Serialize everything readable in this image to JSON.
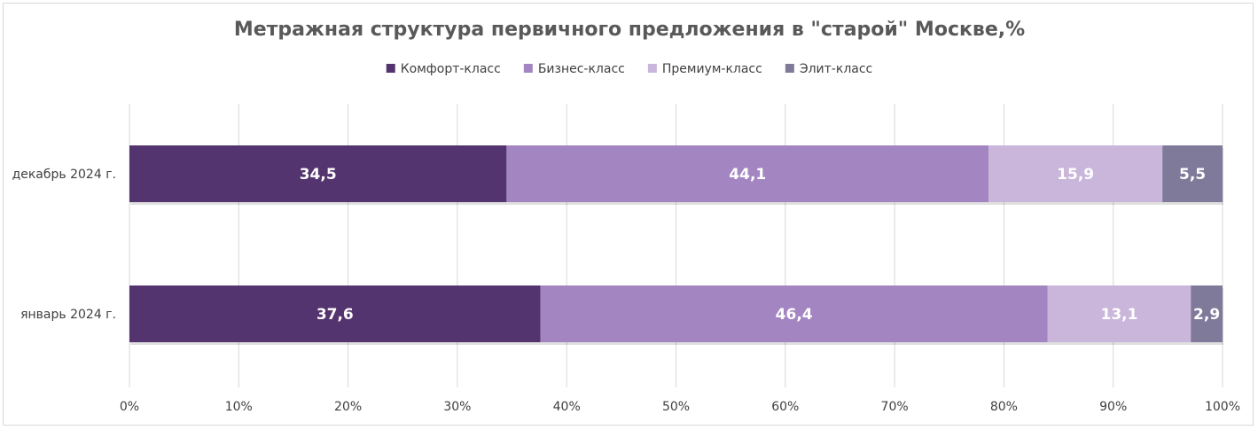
{
  "chart_data": {
    "type": "bar",
    "orientation": "horizontal",
    "stacked": true,
    "title": "Метражная структура первичного предложения в \"старой\" Москве,%",
    "xlabel": "",
    "ylabel": "",
    "xlim": [
      0,
      100
    ],
    "x_ticks": [
      "0%",
      "10%",
      "20%",
      "30%",
      "40%",
      "50%",
      "60%",
      "70%",
      "80%",
      "90%",
      "100%"
    ],
    "grid": "vertical",
    "legend_position": "top",
    "categories": [
      "декабрь 2024 г.",
      "январь 2024 г."
    ],
    "series": [
      {
        "name": "Комфорт-класс",
        "color": "#54346e",
        "values": [
          34.5,
          37.6
        ],
        "labels": [
          "34,5",
          "37,6"
        ]
      },
      {
        "name": "Бизнес-класс",
        "color": "#a386c1",
        "values": [
          44.1,
          46.4
        ],
        "labels": [
          "44,1",
          "46,4"
        ]
      },
      {
        "name": "Премиум-класс",
        "color": "#c9b6da",
        "values": [
          15.9,
          13.1
        ],
        "labels": [
          "15,9",
          "13,1"
        ]
      },
      {
        "name": "Элит-класс",
        "color": "#7f7a9a",
        "values": [
          5.5,
          2.9
        ],
        "labels": [
          "5,5",
          "2,9"
        ]
      }
    ]
  }
}
